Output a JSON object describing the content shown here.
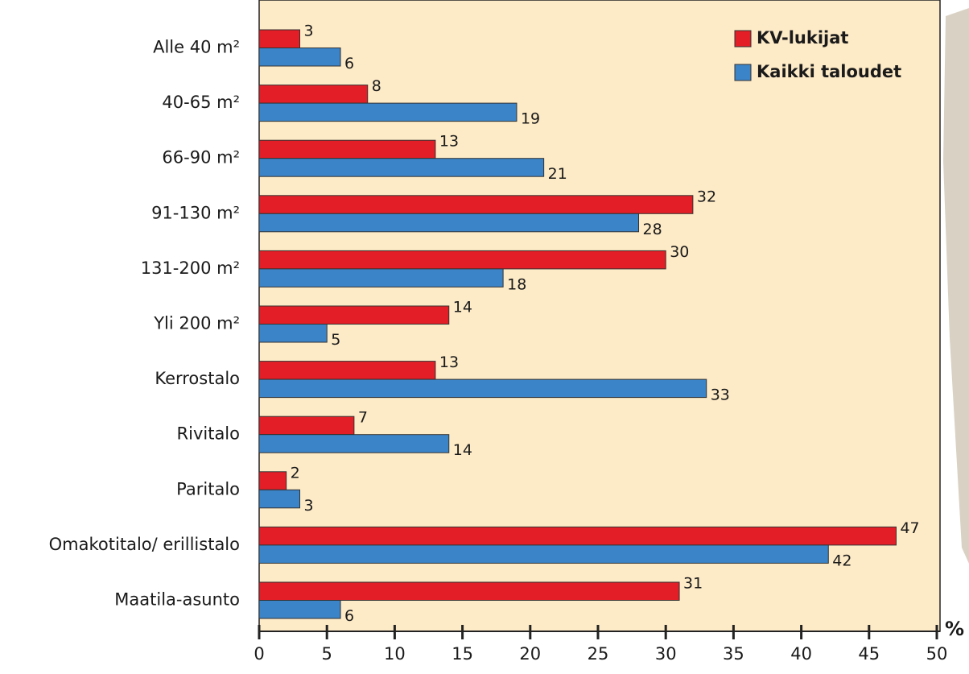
{
  "chart_data": {
    "type": "hbar",
    "categories": [
      "Alle 40 m²",
      "40-65 m²",
      "66-90 m²",
      "91-130 m²",
      "131-200 m²",
      "Yli 200 m²",
      "Kerrostalo",
      "Rivitalo",
      "Paritalo",
      "Omakotitalo/ erillistalo",
      "Maatila-asunto"
    ],
    "series": [
      {
        "name": "KV-lukijat",
        "color": "#e31e26",
        "values": [
          3,
          8,
          13,
          32,
          30,
          14,
          13,
          7,
          2,
          47,
          31
        ]
      },
      {
        "name": "Kaikki taloudet",
        "color": "#3b84c8",
        "values": [
          6,
          19,
          21,
          28,
          18,
          5,
          33,
          14,
          3,
          42,
          6
        ]
      }
    ],
    "xlim": [
      0,
      50
    ],
    "xticks": [
      0,
      5,
      10,
      15,
      20,
      25,
      30,
      35,
      40,
      45,
      50
    ],
    "x_unit": "%",
    "legend": "top-right",
    "background": "#fdeac6"
  }
}
